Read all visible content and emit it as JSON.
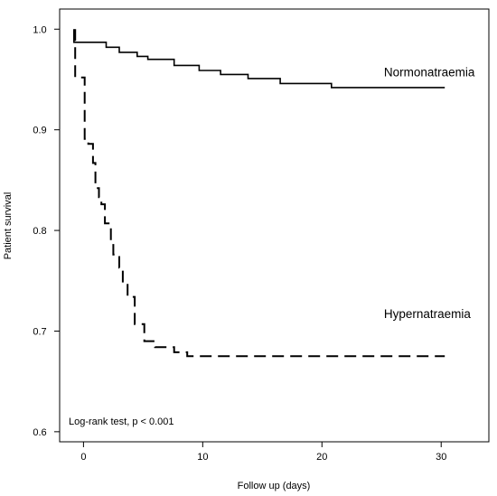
{
  "chart_data": {
    "type": "line",
    "subtype": "kaplan-meier step",
    "xlabel": "Follow up (days)",
    "ylabel": "Patient survival",
    "xlim": [
      -2,
      34
    ],
    "ylim": [
      0.59,
      1.02
    ],
    "x_ticks": [
      {
        "value": 0,
        "label": "0"
      },
      {
        "value": 10,
        "label": "10"
      },
      {
        "value": 20,
        "label": "20"
      },
      {
        "value": 30,
        "label": "30"
      }
    ],
    "y_ticks": [
      {
        "value": 0.6,
        "label": "0.6"
      },
      {
        "value": 0.7,
        "label": "0.7"
      },
      {
        "value": 0.8,
        "label": "0.8"
      },
      {
        "value": 0.9,
        "label": "0.9"
      },
      {
        "value": 1.0,
        "label": "1.0"
      }
    ],
    "grid": false,
    "legend": "none",
    "annotation": "Log-rank test, p < 0.001",
    "series": [
      {
        "name": "Normonatraemia",
        "style": "solid",
        "color": "#000000",
        "label_at": {
          "x": 25.2,
          "y": 0.953
        },
        "points": [
          [
            -0.8,
            1.0
          ],
          [
            -0.8,
            0.987
          ],
          [
            1.9,
            0.987
          ],
          [
            1.9,
            0.982
          ],
          [
            3.0,
            0.982
          ],
          [
            3.0,
            0.977
          ],
          [
            4.5,
            0.977
          ],
          [
            4.5,
            0.973
          ],
          [
            5.4,
            0.973
          ],
          [
            5.4,
            0.97
          ],
          [
            7.6,
            0.97
          ],
          [
            7.6,
            0.964
          ],
          [
            9.7,
            0.964
          ],
          [
            9.7,
            0.959
          ],
          [
            11.5,
            0.959
          ],
          [
            11.5,
            0.955
          ],
          [
            13.8,
            0.955
          ],
          [
            13.8,
            0.951
          ],
          [
            16.5,
            0.951
          ],
          [
            16.5,
            0.946
          ],
          [
            20.8,
            0.946
          ],
          [
            20.8,
            0.942
          ],
          [
            30.3,
            0.942
          ]
        ]
      },
      {
        "name": "Hypernatraemia",
        "style": "dashed",
        "color": "#000000",
        "label_at": {
          "x": 25.2,
          "y": 0.713
        },
        "points": [
          [
            -0.7,
            1.0
          ],
          [
            -0.7,
            0.952
          ],
          [
            0.1,
            0.952
          ],
          [
            0.1,
            0.891
          ],
          [
            0.4,
            0.891
          ],
          [
            0.4,
            0.886
          ],
          [
            0.8,
            0.886
          ],
          [
            0.8,
            0.867
          ],
          [
            1.0,
            0.867
          ],
          [
            1.0,
            0.842
          ],
          [
            1.3,
            0.842
          ],
          [
            1.3,
            0.833
          ],
          [
            1.5,
            0.833
          ],
          [
            1.5,
            0.826
          ],
          [
            1.8,
            0.826
          ],
          [
            1.8,
            0.807
          ],
          [
            2.3,
            0.807
          ],
          [
            2.3,
            0.79
          ],
          [
            2.5,
            0.79
          ],
          [
            2.5,
            0.776
          ],
          [
            3.0,
            0.776
          ],
          [
            3.0,
            0.763
          ],
          [
            3.3,
            0.763
          ],
          [
            3.3,
            0.748
          ],
          [
            3.7,
            0.748
          ],
          [
            3.7,
            0.734
          ],
          [
            4.3,
            0.734
          ],
          [
            4.3,
            0.707
          ],
          [
            5.1,
            0.707
          ],
          [
            5.1,
            0.69
          ],
          [
            6.0,
            0.69
          ],
          [
            6.0,
            0.684
          ],
          [
            7.6,
            0.684
          ],
          [
            7.6,
            0.679
          ],
          [
            8.7,
            0.679
          ],
          [
            8.7,
            0.675
          ],
          [
            30.3,
            0.675
          ]
        ]
      }
    ]
  }
}
